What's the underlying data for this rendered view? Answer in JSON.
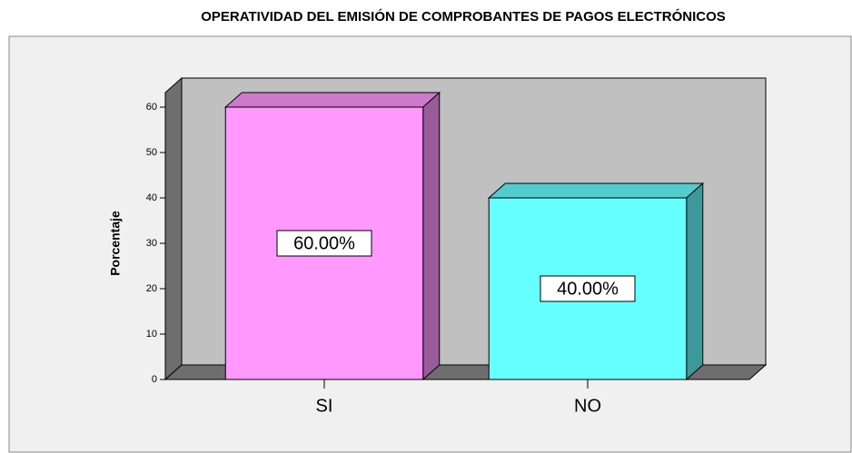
{
  "chart_data": {
    "type": "bar3d",
    "title": "OPERATIVIDAD DEL EMISIÓN DE COMPROBANTES DE PAGOS ELECTRÓNICOS",
    "y_label": "Porcentaje",
    "categories": [
      "SI",
      "NO"
    ],
    "values": [
      60,
      40
    ],
    "value_labels": [
      "60.00%",
      "40.00%"
    ],
    "colors": [
      "#ff99ff",
      "#66ffff"
    ],
    "ylim": [
      0,
      60
    ],
    "yticks": [
      0,
      10,
      20,
      30,
      40,
      50,
      60
    ]
  }
}
